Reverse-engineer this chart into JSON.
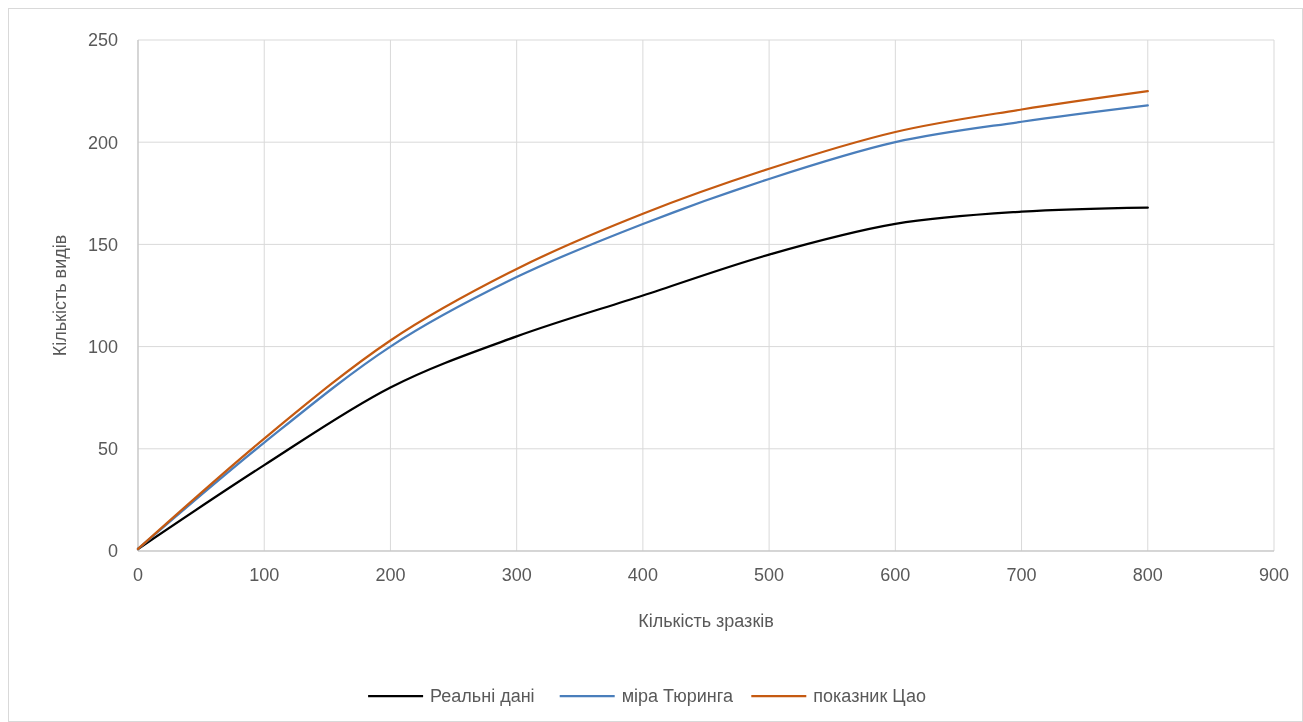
{
  "chart_data": {
    "type": "line",
    "xlabel": "Кількість зразків",
    "ylabel": "Кількість видів",
    "x": [
      0,
      100,
      200,
      300,
      400,
      500,
      600,
      700,
      800
    ],
    "series": [
      {
        "name": "Реальні дані",
        "color": "#000000",
        "values": [
          1,
          42,
          80,
          105,
          125,
          145,
          160,
          166,
          168
        ]
      },
      {
        "name": "міра Тюринга",
        "color": "#4a7ebb",
        "values": [
          1,
          53,
          100,
          134,
          160,
          182,
          200,
          210,
          218
        ]
      },
      {
        "name": "показник Цао",
        "color": "#c55a11",
        "values": [
          1,
          55,
          103,
          138,
          165,
          187,
          205,
          216,
          225
        ]
      }
    ],
    "xlim": [
      0,
      900
    ],
    "xticks": [
      0,
      100,
      200,
      300,
      400,
      500,
      600,
      700,
      800,
      900
    ],
    "ylim": [
      0,
      250
    ],
    "yticks": [
      0,
      50,
      100,
      150,
      200,
      250
    ],
    "grid": true,
    "legend": "bottom",
    "marker": "none",
    "line_style": "solid"
  }
}
